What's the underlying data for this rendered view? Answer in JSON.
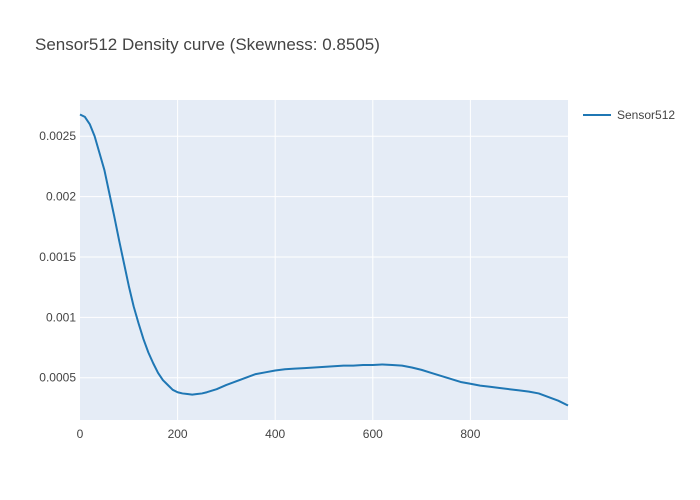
{
  "chart_data": {
    "type": "line",
    "title": "Sensor512 Density curve (Skewness: 0.8505)",
    "xlabel": "",
    "ylabel": "",
    "xlim": [
      0,
      1000
    ],
    "ylim": [
      0.00015,
      0.0028
    ],
    "x_ticks": [
      0,
      200,
      400,
      600,
      800
    ],
    "x_tick_labels": [
      "0",
      "200",
      "400",
      "600",
      "800"
    ],
    "y_ticks": [
      0.0005,
      0.001,
      0.0015,
      0.002,
      0.0025
    ],
    "y_tick_labels": [
      "0.0005",
      "0.001",
      "0.0015",
      "0.002",
      "0.0025"
    ],
    "grid": true,
    "legend_position": "top-right",
    "series": [
      {
        "name": "Sensor512",
        "color": "#1f77b4",
        "x": [
          0,
          10,
          20,
          30,
          40,
          50,
          60,
          70,
          80,
          90,
          100,
          110,
          120,
          130,
          140,
          150,
          160,
          170,
          180,
          190,
          200,
          210,
          220,
          230,
          240,
          250,
          260,
          280,
          300,
          320,
          340,
          360,
          380,
          400,
          420,
          440,
          460,
          480,
          500,
          520,
          540,
          560,
          580,
          600,
          620,
          640,
          660,
          680,
          700,
          720,
          740,
          760,
          780,
          800,
          820,
          840,
          860,
          880,
          900,
          920,
          940,
          960,
          980,
          1000
        ],
        "y": [
          0.00268,
          0.00266,
          0.0026,
          0.0025,
          0.00236,
          0.00222,
          0.00203,
          0.00184,
          0.00164,
          0.00145,
          0.00126,
          0.00109,
          0.00095,
          0.00082,
          0.00071,
          0.00062,
          0.00054,
          0.00048,
          0.00044,
          0.0004,
          0.00038,
          0.00037,
          0.000365,
          0.00036,
          0.000365,
          0.00037,
          0.00038,
          0.000405,
          0.00044,
          0.00047,
          0.0005,
          0.00053,
          0.000545,
          0.00056,
          0.00057,
          0.000575,
          0.00058,
          0.000585,
          0.00059,
          0.000595,
          0.0006,
          0.0006,
          0.000605,
          0.000605,
          0.00061,
          0.000605,
          0.0006,
          0.000585,
          0.000565,
          0.00054,
          0.000515,
          0.00049,
          0.000465,
          0.00045,
          0.000435,
          0.000425,
          0.000415,
          0.000405,
          0.000395,
          0.000385,
          0.00037,
          0.00034,
          0.00031,
          0.00027
        ]
      }
    ]
  }
}
